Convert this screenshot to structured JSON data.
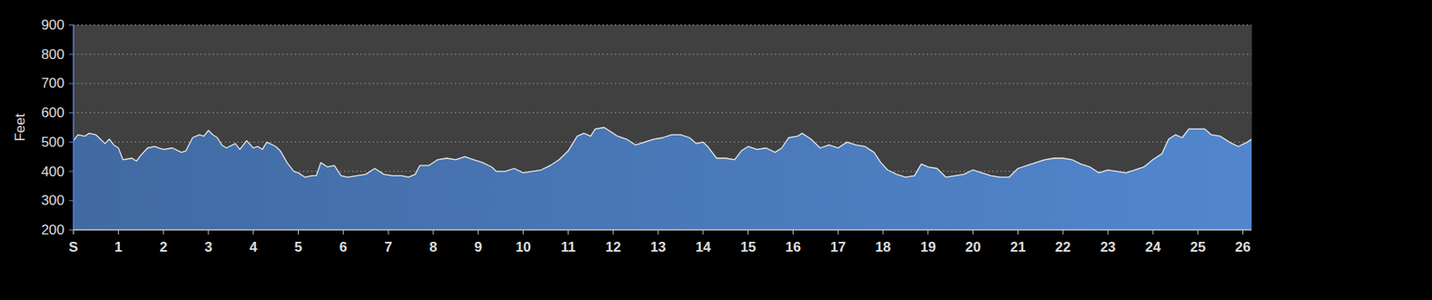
{
  "chart_data": {
    "type": "area",
    "ylabel": "Feet",
    "color": "#4a78b8",
    "grid": true,
    "xlim": [
      0,
      26.2
    ],
    "ylim": [
      200,
      900
    ],
    "xticks": [
      {
        "value": 0,
        "label": "S"
      },
      1,
      2,
      3,
      4,
      5,
      6,
      7,
      8,
      9,
      10,
      11,
      12,
      13,
      14,
      15,
      16,
      17,
      18,
      19,
      20,
      21,
      22,
      23,
      24,
      25,
      26
    ],
    "yticks": [
      200,
      300,
      400,
      500,
      600,
      700,
      800,
      900
    ],
    "x": [
      0,
      0.1,
      0.25,
      0.35,
      0.5,
      0.6,
      0.7,
      0.8,
      0.9,
      1.0,
      1.1,
      1.3,
      1.4,
      1.5,
      1.65,
      1.8,
      2.0,
      2.2,
      2.4,
      2.5,
      2.65,
      2.8,
      2.9,
      3.0,
      3.1,
      3.2,
      3.3,
      3.4,
      3.6,
      3.7,
      3.85,
      4.0,
      4.1,
      4.2,
      4.3,
      4.5,
      4.6,
      4.75,
      4.9,
      5.0,
      5.15,
      5.3,
      5.4,
      5.5,
      5.65,
      5.8,
      5.95,
      6.1,
      6.3,
      6.5,
      6.7,
      6.9,
      7.1,
      7.3,
      7.45,
      7.6,
      7.7,
      7.9,
      8.1,
      8.3,
      8.5,
      8.7,
      8.9,
      9.1,
      9.3,
      9.4,
      9.6,
      9.8,
      10.0,
      10.2,
      10.4,
      10.6,
      10.8,
      11.0,
      11.2,
      11.35,
      11.5,
      11.6,
      11.8,
      12.0,
      12.1,
      12.3,
      12.5,
      12.7,
      12.9,
      13.1,
      13.3,
      13.5,
      13.7,
      13.85,
      14.0,
      14.1,
      14.3,
      14.5,
      14.7,
      14.85,
      15.0,
      15.2,
      15.4,
      15.6,
      15.75,
      15.9,
      16.1,
      16.2,
      16.4,
      16.6,
      16.8,
      17.0,
      17.2,
      17.4,
      17.6,
      17.8,
      17.95,
      18.1,
      18.3,
      18.5,
      18.7,
      18.85,
      19.0,
      19.2,
      19.4,
      19.6,
      19.8,
      20.0,
      20.2,
      20.4,
      20.6,
      20.8,
      21.0,
      21.2,
      21.4,
      21.6,
      21.8,
      22.0,
      22.2,
      22.4,
      22.6,
      22.8,
      23.0,
      23.2,
      23.4,
      23.6,
      23.8,
      24.0,
      24.2,
      24.35,
      24.5,
      24.65,
      24.8,
      25.0,
      25.15,
      25.3,
      25.5,
      25.7,
      25.9,
      26.1,
      26.2
    ],
    "values": [
      505,
      525,
      520,
      530,
      525,
      510,
      495,
      510,
      490,
      480,
      440,
      445,
      435,
      455,
      480,
      485,
      475,
      480,
      465,
      470,
      515,
      525,
      520,
      540,
      525,
      515,
      490,
      480,
      495,
      475,
      505,
      480,
      485,
      475,
      500,
      485,
      470,
      430,
      400,
      395,
      380,
      385,
      385,
      430,
      415,
      420,
      385,
      380,
      385,
      390,
      410,
      390,
      385,
      385,
      380,
      390,
      420,
      420,
      440,
      445,
      440,
      450,
      440,
      430,
      415,
      400,
      400,
      410,
      395,
      400,
      405,
      420,
      440,
      470,
      520,
      530,
      520,
      545,
      550,
      530,
      520,
      510,
      490,
      500,
      510,
      515,
      525,
      525,
      515,
      495,
      500,
      485,
      445,
      445,
      440,
      470,
      485,
      475,
      480,
      465,
      480,
      515,
      520,
      530,
      510,
      480,
      490,
      480,
      500,
      490,
      485,
      465,
      430,
      405,
      390,
      380,
      385,
      425,
      415,
      410,
      380,
      385,
      390,
      405,
      395,
      385,
      380,
      380,
      410,
      420,
      430,
      440,
      445,
      445,
      440,
      425,
      415,
      395,
      405,
      400,
      395,
      405,
      415,
      440,
      460,
      510,
      525,
      515,
      545,
      545,
      545,
      525,
      520,
      500,
      485,
      500,
      510
    ]
  }
}
